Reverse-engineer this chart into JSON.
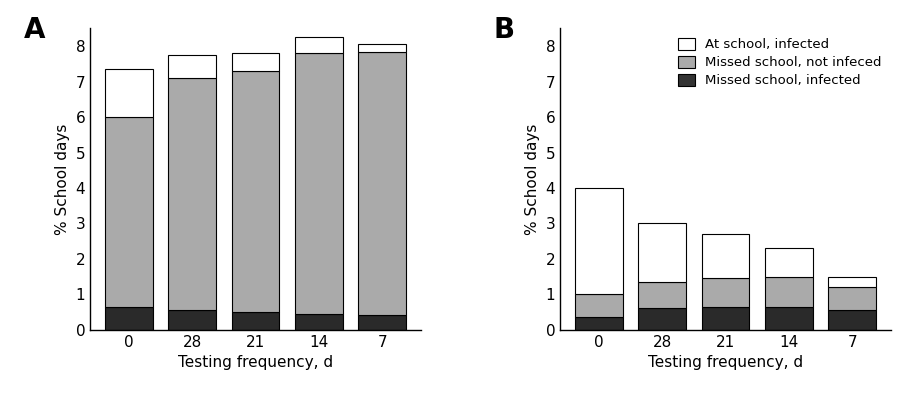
{
  "categories": [
    "0",
    "28",
    "21",
    "14",
    "7"
  ],
  "panel_A": {
    "black": [
      0.65,
      0.55,
      0.5,
      0.45,
      0.4
    ],
    "gray": [
      5.35,
      6.55,
      6.8,
      7.35,
      7.45
    ],
    "white": [
      1.35,
      0.65,
      0.5,
      0.45,
      0.2
    ]
  },
  "panel_B": {
    "black": [
      0.35,
      0.6,
      0.65,
      0.65,
      0.55
    ],
    "gray": [
      0.65,
      0.75,
      0.8,
      0.85,
      0.65
    ],
    "white": [
      3.0,
      1.65,
      1.25,
      0.8,
      0.3
    ]
  },
  "legend_labels": [
    "At school, infected",
    "Missed school, not infeced",
    "Missed school, infected"
  ],
  "legend_colors": [
    "#ffffff",
    "#aaaaaa",
    "#333333"
  ],
  "bar_color_black": "#2a2a2a",
  "bar_color_gray": "#aaaaaa",
  "bar_color_white": "#ffffff",
  "bar_edgecolor": "#000000",
  "xlabel": "Testing frequency, d",
  "ylabel": "% School days",
  "ylim_A": [
    0,
    8.5
  ],
  "ylim_B": [
    0,
    8.5
  ],
  "yticks_A": [
    0,
    1,
    2,
    3,
    4,
    5,
    6,
    7,
    8
  ],
  "yticks_B": [
    0,
    1,
    2,
    3,
    4,
    5,
    6,
    7,
    8
  ],
  "label_A": "A",
  "label_B": "B",
  "bar_width": 0.75
}
